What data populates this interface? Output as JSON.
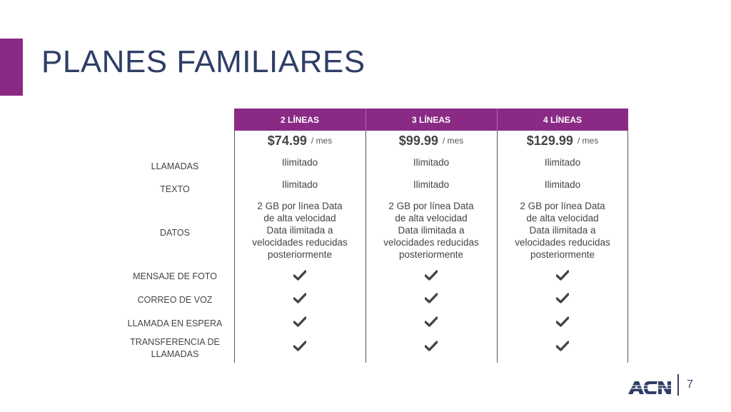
{
  "title": "PLANES FAMILIARES",
  "columns": [
    {
      "header": "2 LÍNEAS",
      "price": "$74.99",
      "per": "/ mes"
    },
    {
      "header": "3 LÍNEAS",
      "price": "$99.99",
      "per": "/ mes"
    },
    {
      "header": "4 LÍNEAS",
      "price": "$129.99",
      "per": "/ mes"
    }
  ],
  "rows": {
    "llamadas": {
      "label": "LLAMADAS",
      "values": [
        "Ilimitado",
        "Ilimitado",
        "Ilimitado"
      ]
    },
    "texto": {
      "label": "TEXTO",
      "values": [
        "Ilimitado",
        "Ilimitado",
        "Ilimitado"
      ]
    },
    "datos": {
      "label": "DATOS",
      "values": [
        [
          "2 GB por línea Data",
          "de alta velocidad",
          "Data ilimitada a",
          "velocidades reducidas",
          "posteriormente"
        ],
        [
          "2 GB por línea Data",
          "de alta velocidad",
          "Data ilimitada a",
          "velocidades reducidas",
          "posteriormente"
        ],
        [
          "2 GB por línea Data",
          "de alta velocidad",
          "Data ilimitada a",
          "velocidades reducidas",
          "posteriormente"
        ]
      ]
    },
    "mensaje_foto": {
      "label": "MENSAJE DE FOTO"
    },
    "correo_voz": {
      "label": "CORREO DE VOZ"
    },
    "llamada_espera": {
      "label": "LLAMADA EN ESPERA"
    },
    "transferencia": {
      "label_line1": "TRANSFERENCIA DE",
      "label_line2": "LLAMADAS"
    }
  },
  "check_icon": "check-icon",
  "logo_text": "ACN",
  "page_number": "7",
  "colors": {
    "accent": "#8a2a85",
    "title": "#2f3e67"
  }
}
